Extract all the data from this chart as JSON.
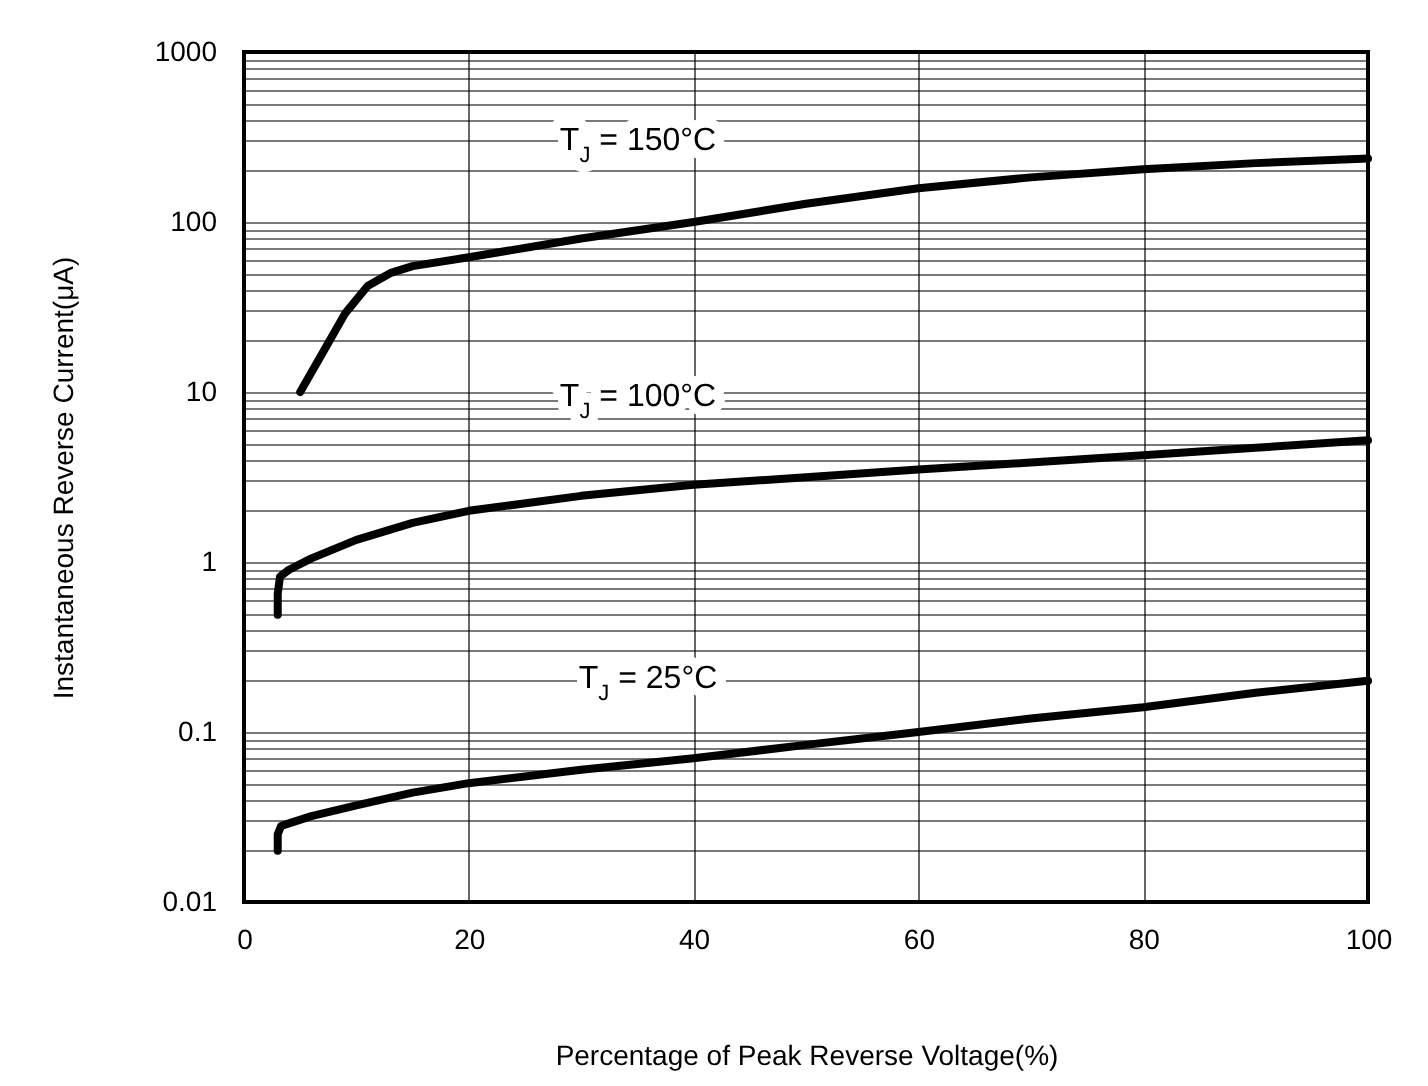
{
  "chart_data": {
    "type": "line",
    "xlabel": "Percentage of Peak Reverse Voltage(%)",
    "ylabel": "Instantaneous Reverse Current(μA)",
    "xlim": [
      0,
      100
    ],
    "xticks": [
      0,
      20,
      40,
      60,
      80,
      100
    ],
    "ylim": [
      0.01,
      1000
    ],
    "yticks": [
      0.01,
      0.1,
      1,
      10,
      100,
      1000
    ],
    "log": "y",
    "grid": true,
    "legend": false,
    "series": [
      {
        "color": "#000000",
        "x": [
          5,
          7,
          9,
          11,
          13,
          15,
          20,
          30,
          40,
          50,
          60,
          70,
          80,
          90,
          100
        ],
        "values": [
          10,
          17,
          29,
          42,
          50,
          55,
          62,
          80,
          100,
          128,
          158,
          183,
          204,
          222,
          236
        ]
      },
      {
        "color": "#000000",
        "x": [
          3,
          3,
          3.2,
          4,
          6,
          10,
          15,
          20,
          30,
          40,
          50,
          60,
          70,
          80,
          90,
          100
        ],
        "values": [
          0.49,
          0.65,
          0.82,
          0.9,
          1.05,
          1.35,
          1.7,
          2.0,
          2.45,
          2.85,
          3.15,
          3.5,
          3.85,
          4.25,
          4.7,
          5.2
        ]
      },
      {
        "color": "#000000",
        "x": [
          3,
          3,
          3.3,
          4,
          6,
          10,
          15,
          20,
          30,
          40,
          50,
          60,
          70,
          80,
          90,
          100
        ],
        "values": [
          0.02,
          0.025,
          0.028,
          0.029,
          0.032,
          0.037,
          0.044,
          0.05,
          0.06,
          0.07,
          0.084,
          0.1,
          0.12,
          0.14,
          0.17,
          0.2
        ]
      }
    ],
    "annotations": [
      "T$_{J}$ = 150°C",
      "T$_{J}$ = 100°C",
      "T$_{J}$ = 25°C"
    ]
  }
}
